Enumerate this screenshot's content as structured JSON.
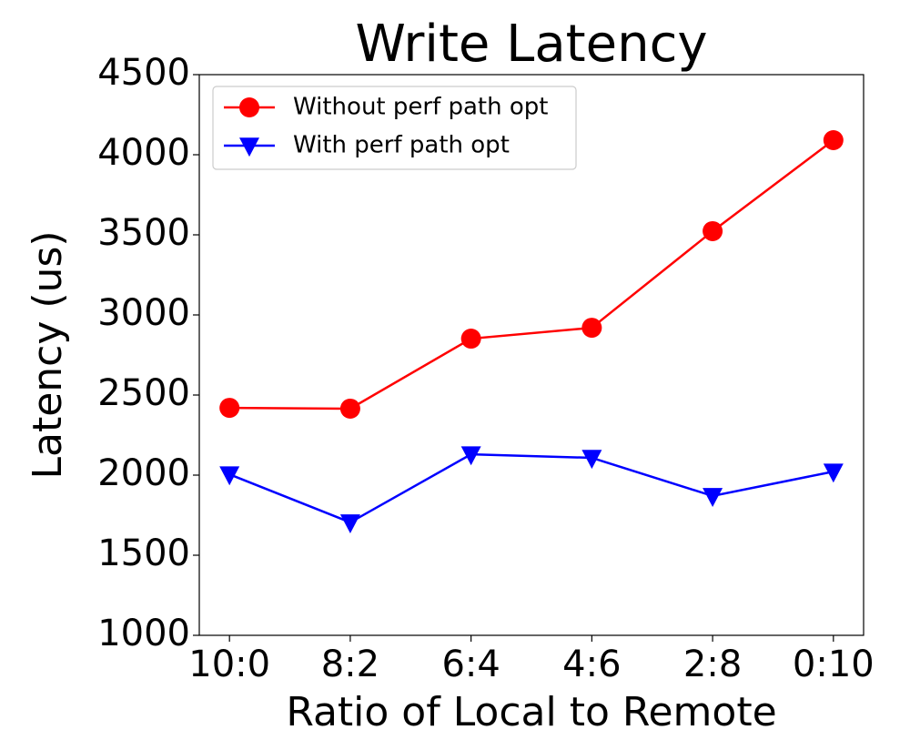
{
  "chart_data": {
    "type": "line",
    "title": "Write Latency",
    "x_label": "Ratio of Local to Remote",
    "y_label": "Latency (us)",
    "categories": [
      "10:0",
      "8:2",
      "6:4",
      "4:6",
      "2:8",
      "0:10"
    ],
    "series": [
      {
        "name": "Without perf path opt",
        "color": "#ff0000",
        "marker": "circle",
        "values": [
          2420,
          2415,
          2852,
          2920,
          3523,
          4091
        ]
      },
      {
        "name": "With perf path opt",
        "color": "#0000ff",
        "marker": "triangle-down",
        "values": [
          2005,
          1705,
          2130,
          2108,
          1870,
          2022
        ]
      }
    ],
    "ylim": [
      1000,
      4500
    ],
    "yticks": [
      1000,
      1500,
      2000,
      2500,
      3000,
      3500,
      4000,
      4500
    ],
    "grid": false,
    "legend": "upper left"
  }
}
